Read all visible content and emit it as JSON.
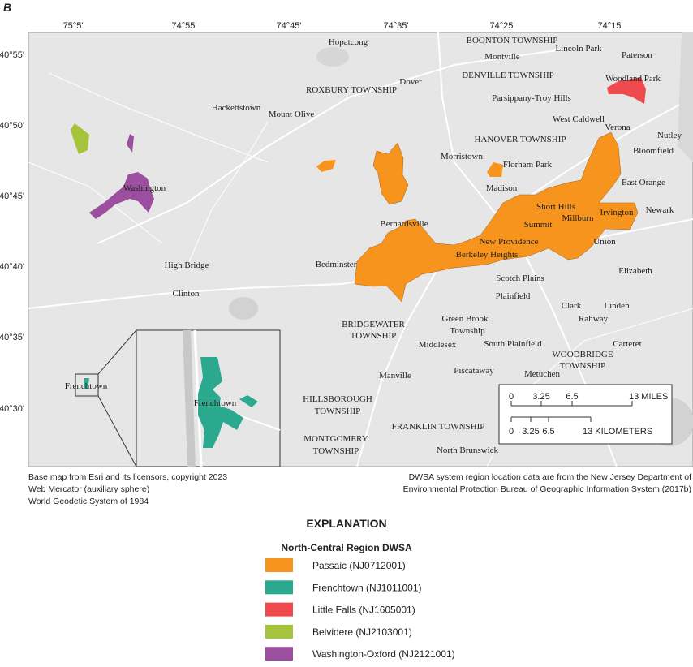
{
  "panel_label": "B",
  "map": {
    "lon_ticks": [
      "75°5'",
      "74°55'",
      "74°45'",
      "74°35'",
      "74°25'",
      "74°15'"
    ],
    "lat_ticks": [
      "40°55'",
      "40°50'",
      "40°45'",
      "40°40'",
      "40°35'",
      "40°30'"
    ],
    "place_labels": [
      "Hopatcong",
      "BOONTON TOWNSHIP",
      "Montville",
      "Lincoln Park",
      "Paterson",
      "Woodland Park",
      "Dover",
      "DENVILLE TOWNSHIP",
      "ROXBURY TOWNSHIP",
      "Parsippany-Troy Hills",
      "Hackettstown",
      "Mount Olive",
      "West Caldwell",
      "Verona",
      "Nutley",
      "HANOVER TOWNSHIP",
      "Bloomfield",
      "Morristown",
      "Florham Park",
      "East Orange",
      "Washington",
      "Madison",
      "Short Hills",
      "Irvington",
      "Newark",
      "Summit",
      "Millburn",
      "Bernardsville",
      "Union",
      "New Providence",
      "Berkeley Heights",
      "High Bridge",
      "Bedminster",
      "Elizabeth",
      "Scotch Plains",
      "Clinton",
      "Plainfield",
      "Clark",
      "Linden",
      "Green Brook",
      "BRIDGEWATER",
      "TOWNSHIP",
      "Rahway",
      "Township",
      "Carteret",
      "Middlesex",
      "South Plainfield",
      "WOODBRIDGE",
      "TOWNSHIP",
      "Frenchtown",
      "Manville",
      "Piscataway",
      "Metuchen",
      "HILLSBOROUGH",
      "TOWNSHIP",
      "FRANKLIN TOWNSHIP",
      "MONTGOMERY",
      "TOWNSHIP",
      "North Brunswick"
    ],
    "inset_label": "Frenchtown",
    "scale_miles": [
      "0",
      "3.25",
      "6.5",
      "13 MILES"
    ],
    "scale_km": [
      "0",
      "3.25",
      "6.5",
      "13 KILOMETERS"
    ]
  },
  "credits_left": [
    "Base map from Esri and its licensors, copyright 2023",
    "Web Mercator (auxiliary sphere)",
    "World Geodetic System of 1984"
  ],
  "credits_right": [
    "DWSA system region location data are from the New Jersey Department of",
    "Environmental Protection Bureau of Geographic Information System (2017b)"
  ],
  "legend": {
    "title": "EXPLANATION",
    "subtitle": "North-Central Region DWSA",
    "items": [
      {
        "name": "Passaic (NJ0712001)",
        "color": "#f7941d"
      },
      {
        "name": "Frenchtown (NJ1011001)",
        "color": "#2ba98f"
      },
      {
        "name": "Little Falls (NJ1605001)",
        "color": "#ee4a4d"
      },
      {
        "name": "Belvidere (NJ2103001)",
        "color": "#a5c33b"
      },
      {
        "name": "Washington-Oxford (NJ2121001)",
        "color": "#9b4f9e"
      }
    ]
  }
}
